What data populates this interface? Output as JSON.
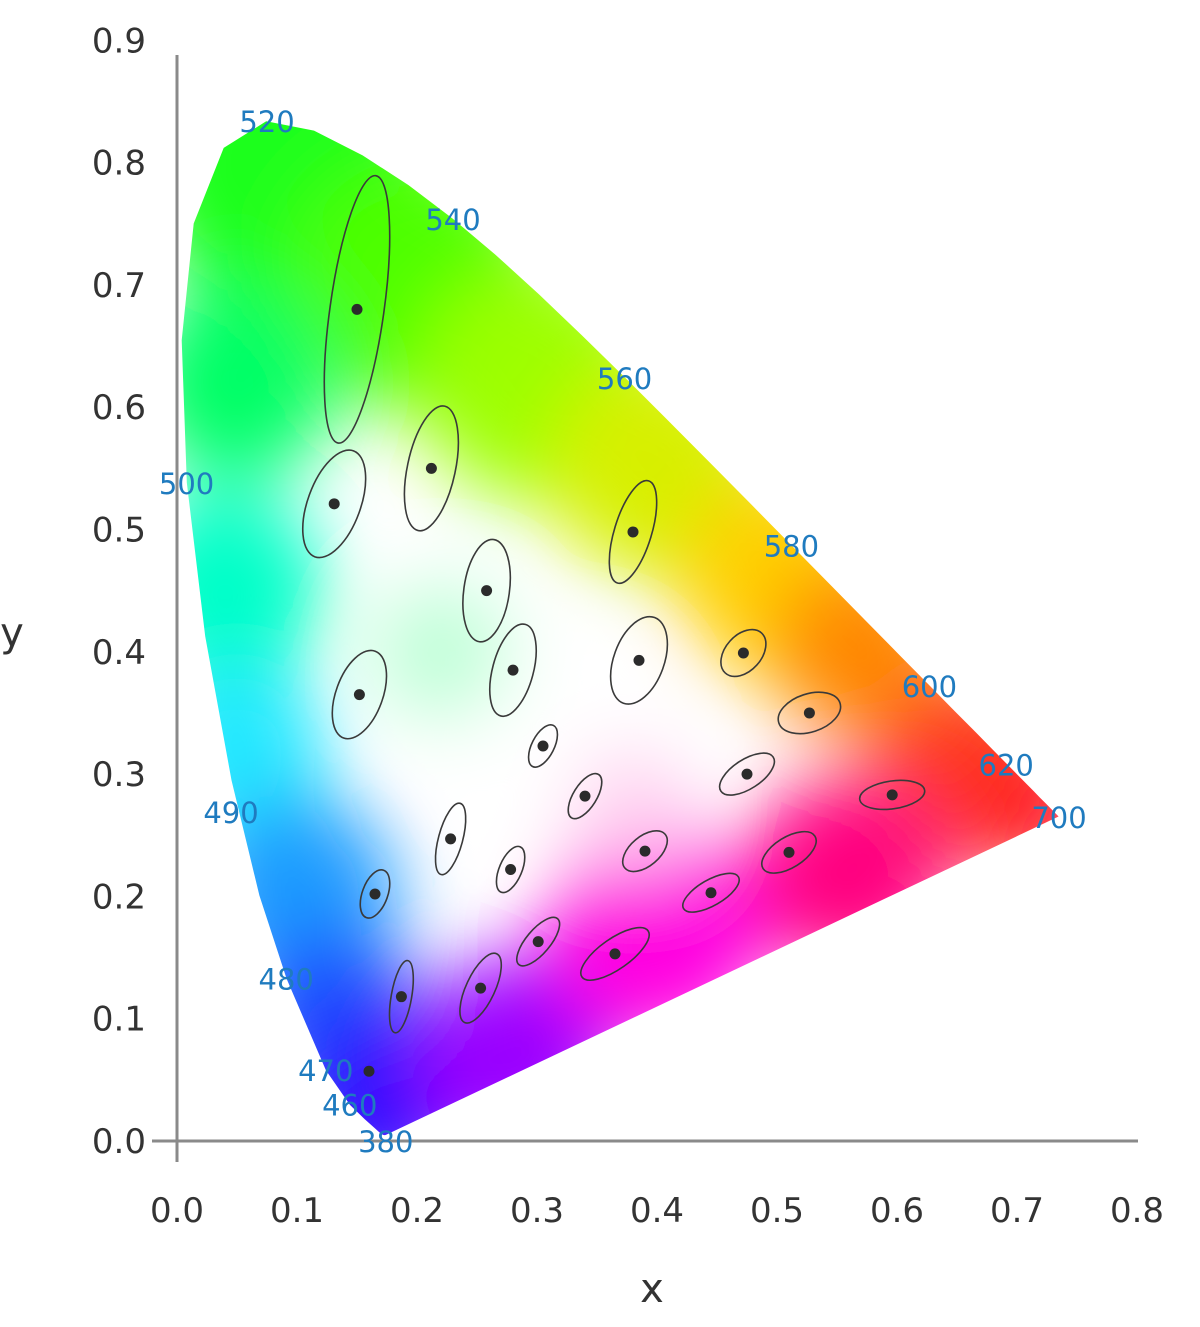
{
  "chart_data": {
    "type": "scatter",
    "title": "",
    "xlabel": "x",
    "ylabel": "y",
    "xlim": [
      0.0,
      0.8
    ],
    "ylim": [
      0.0,
      0.9
    ],
    "x_ticks": [
      "0.0",
      "0.1",
      "0.2",
      "0.3",
      "0.4",
      "0.5",
      "0.6",
      "0.7",
      "0.8"
    ],
    "y_ticks": [
      "0.0",
      "0.1",
      "0.2",
      "0.3",
      "0.4",
      "0.5",
      "0.6",
      "0.7",
      "0.8",
      "0.9"
    ],
    "grid": false,
    "axis_color": "#8a8a8a",
    "label_color": "#1f7bbf",
    "ellipse_color": "#3a3a3a",
    "spectral_locus_labels": [
      {
        "text": "520",
        "x": 0.075,
        "y": 0.834
      },
      {
        "text": "540",
        "x": 0.23,
        "y": 0.754
      },
      {
        "text": "560",
        "x": 0.373,
        "y": 0.624
      },
      {
        "text": "580",
        "x": 0.512,
        "y": 0.487
      },
      {
        "text": "600",
        "x": 0.627,
        "y": 0.372
      },
      {
        "text": "620",
        "x": 0.691,
        "y": 0.308
      },
      {
        "text": "700",
        "x": 0.735,
        "y": 0.265
      },
      {
        "text": "500",
        "x": 0.008,
        "y": 0.538
      },
      {
        "text": "490",
        "x": 0.045,
        "y": 0.269
      },
      {
        "text": "480",
        "x": 0.091,
        "y": 0.133
      },
      {
        "text": "470",
        "x": 0.124,
        "y": 0.058
      },
      {
        "text": "460",
        "x": 0.144,
        "y": 0.03
      },
      {
        "text": "380",
        "x": 0.174,
        "y": 0.0
      }
    ],
    "macadam_ellipses": [
      {
        "x": 0.16,
        "y": 0.057,
        "a": 0.003,
        "b": 0.002,
        "angle": 0
      },
      {
        "x": 0.187,
        "y": 0.118,
        "a": 0.0305,
        "b": 0.0085,
        "angle": 80
      },
      {
        "x": 0.253,
        "y": 0.125,
        "a": 0.0316,
        "b": 0.012,
        "angle": 65
      },
      {
        "x": 0.15,
        "y": 0.68,
        "a": 0.1125,
        "b": 0.0225,
        "angle": 82
      },
      {
        "x": 0.131,
        "y": 0.521,
        "a": 0.047,
        "b": 0.022,
        "angle": 70
      },
      {
        "x": 0.212,
        "y": 0.55,
        "a": 0.053,
        "b": 0.02,
        "angle": 78
      },
      {
        "x": 0.258,
        "y": 0.45,
        "a": 0.043,
        "b": 0.019,
        "angle": 82
      },
      {
        "x": 0.152,
        "y": 0.365,
        "a": 0.0385,
        "b": 0.0195,
        "angle": 70
      },
      {
        "x": 0.28,
        "y": 0.385,
        "a": 0.0395,
        "b": 0.017,
        "angle": 75
      },
      {
        "x": 0.38,
        "y": 0.498,
        "a": 0.0445,
        "b": 0.0155,
        "angle": 73
      },
      {
        "x": 0.385,
        "y": 0.393,
        "a": 0.038,
        "b": 0.021,
        "angle": 70
      },
      {
        "x": 0.472,
        "y": 0.399,
        "a": 0.0225,
        "b": 0.015,
        "angle": 48
      },
      {
        "x": 0.527,
        "y": 0.35,
        "a": 0.0268,
        "b": 0.0159,
        "angle": 18
      },
      {
        "x": 0.475,
        "y": 0.3,
        "a": 0.026,
        "b": 0.0122,
        "angle": 33
      },
      {
        "x": 0.51,
        "y": 0.236,
        "a": 0.0255,
        "b": 0.0127,
        "angle": 32
      },
      {
        "x": 0.596,
        "y": 0.283,
        "a": 0.0273,
        "b": 0.0116,
        "angle": 8
      },
      {
        "x": 0.305,
        "y": 0.323,
        "a": 0.0192,
        "b": 0.0093,
        "angle": 63
      },
      {
        "x": 0.34,
        "y": 0.282,
        "a": 0.0213,
        "b": 0.0097,
        "angle": 58
      },
      {
        "x": 0.228,
        "y": 0.247,
        "a": 0.0307,
        "b": 0.0101,
        "angle": 75
      },
      {
        "x": 0.165,
        "y": 0.202,
        "a": 0.021,
        "b": 0.0106,
        "angle": 70
      },
      {
        "x": 0.278,
        "y": 0.222,
        "a": 0.0205,
        "b": 0.0094,
        "angle": 67
      },
      {
        "x": 0.39,
        "y": 0.237,
        "a": 0.0219,
        "b": 0.0123,
        "angle": 40
      },
      {
        "x": 0.445,
        "y": 0.203,
        "a": 0.0264,
        "b": 0.0107,
        "angle": 30
      },
      {
        "x": 0.301,
        "y": 0.163,
        "a": 0.025,
        "b": 0.01,
        "angle": 50
      },
      {
        "x": 0.365,
        "y": 0.153,
        "a": 0.0336,
        "b": 0.0127,
        "angle": 35
      }
    ]
  }
}
